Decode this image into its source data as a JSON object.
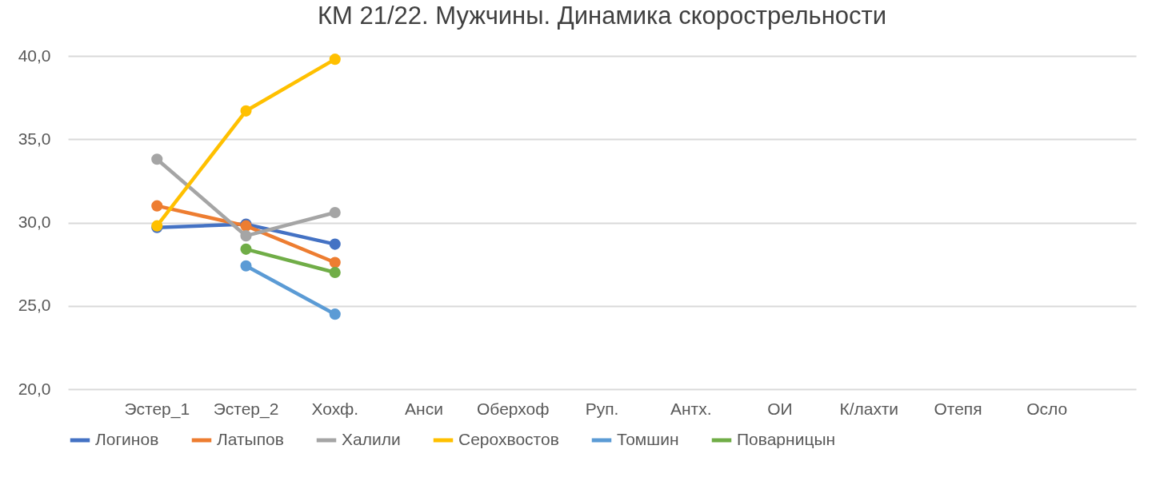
{
  "chart_data": {
    "type": "line",
    "title": "КМ 21/22. Мужчины. Динамика скорострельности",
    "categories": [
      "Эстер_1",
      "Эстер_2",
      "Хохф.",
      "Анси",
      "Оберхоф",
      "Руп.",
      "Антх.",
      "ОИ",
      "К/лахти",
      "Отепя",
      "Осло"
    ],
    "series": [
      {
        "name": "Логинов",
        "color": "#4472c4",
        "values": [
          29.7,
          29.9,
          28.7,
          null,
          null,
          null,
          null,
          null,
          null,
          null,
          null
        ]
      },
      {
        "name": "Латыпов",
        "color": "#ed7d31",
        "values": [
          31.0,
          29.8,
          27.6,
          null,
          null,
          null,
          null,
          null,
          null,
          null,
          null
        ]
      },
      {
        "name": "Халили",
        "color": "#a5a5a5",
        "values": [
          33.8,
          29.2,
          30.6,
          null,
          null,
          null,
          null,
          null,
          null,
          null,
          null
        ]
      },
      {
        "name": "Серохвостов",
        "color": "#ffc000",
        "values": [
          29.8,
          36.7,
          39.8,
          null,
          null,
          null,
          null,
          null,
          null,
          null,
          null
        ]
      },
      {
        "name": "Томшин",
        "color": "#5b9bd5",
        "values": [
          null,
          27.4,
          24.5,
          null,
          null,
          null,
          null,
          null,
          null,
          null,
          null
        ]
      },
      {
        "name": "Поварницын",
        "color": "#70ad47",
        "values": [
          null,
          28.4,
          27.0,
          null,
          null,
          null,
          null,
          null,
          null,
          null,
          null
        ]
      }
    ],
    "ylim": [
      20,
      40
    ],
    "yticks": [
      {
        "value": 20,
        "label": "20,0"
      },
      {
        "value": 25,
        "label": "25,0"
      },
      {
        "value": 30,
        "label": "30,0"
      },
      {
        "value": 35,
        "label": "35,0"
      },
      {
        "value": 40,
        "label": "40,0"
      }
    ],
    "grid": "y",
    "legend": "bottom",
    "marker": "circle",
    "line_style": "solid"
  }
}
